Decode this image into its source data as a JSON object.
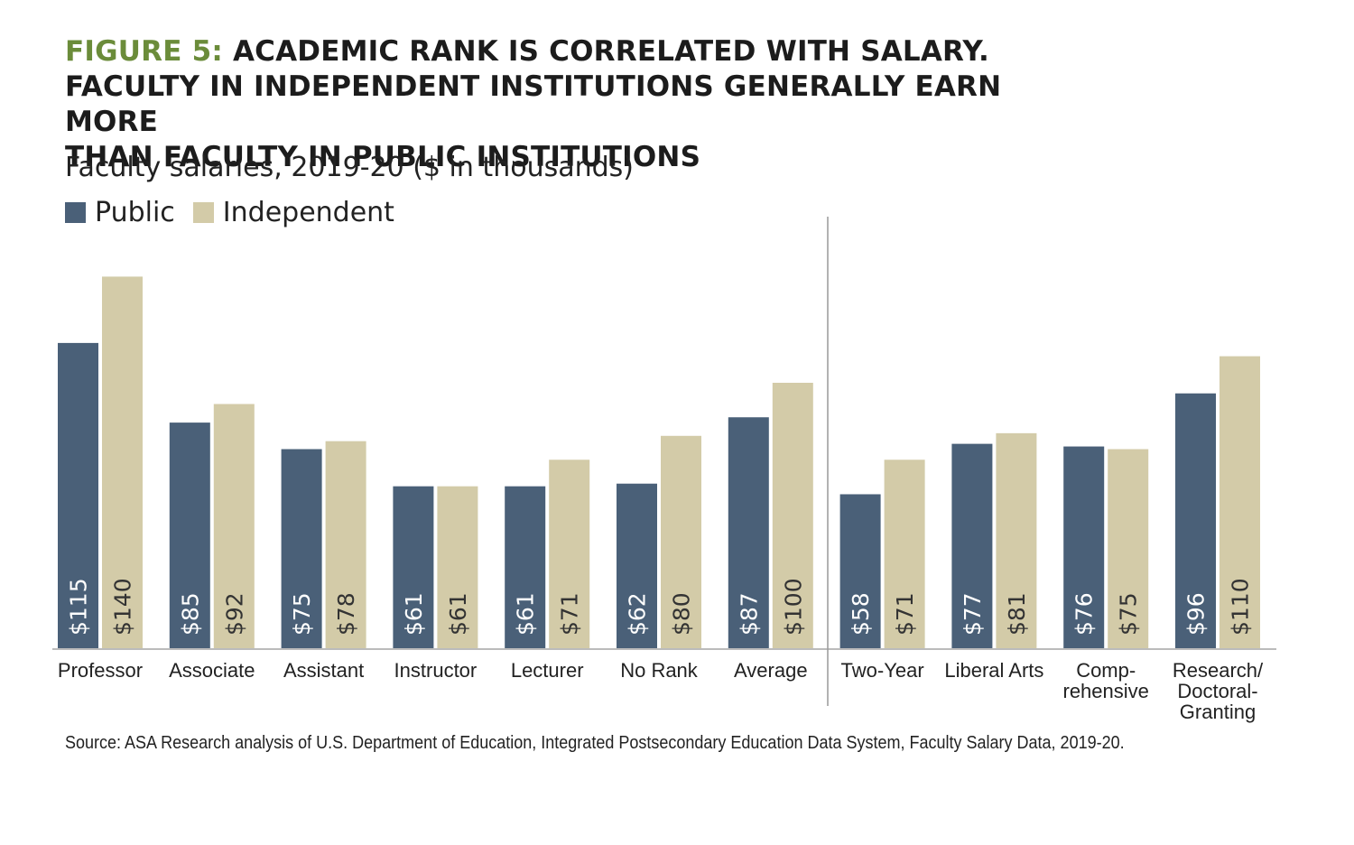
{
  "title": {
    "figure_label": "FIGURE 5:",
    "line1": "ACADEMIC RANK IS CORRELATED WITH SALARY.",
    "line2": "FACULTY IN INDEPENDENT INSTITUTIONS GENERALLY EARN MORE",
    "line3": "THAN FACULTY IN PUBLIC INSTITUTIONS"
  },
  "subtitle": "Faculty salaries, 2019-20 ($ in thousands)",
  "legend": {
    "public": "Public",
    "independent": "Independent"
  },
  "colors": {
    "public": "#4a6078",
    "independent": "#d3cba8",
    "figure_label": "#6b8c3a",
    "axis": "#bbbbbb",
    "divider": "#999999"
  },
  "source": "Source: ASA Research analysis of U.S. Department of Education, Integrated Postsecondary Education Data System, Faculty Salary Data, 2019-20.",
  "chart_data": {
    "type": "bar",
    "orientation": "vertical",
    "ylim": [
      0,
      150
    ],
    "grid": false,
    "legend_position": "top-left",
    "categories": [
      [
        "Professor"
      ],
      [
        "Associate"
      ],
      [
        "Assistant"
      ],
      [
        "Instructor"
      ],
      [
        "Lecturer"
      ],
      [
        "No Rank"
      ],
      [
        "Average"
      ],
      [
        "Two-Year"
      ],
      [
        "Liberal Arts"
      ],
      [
        "Comp-",
        "rehensive"
      ],
      [
        "Research/",
        "Doctoral-",
        "Granting"
      ]
    ],
    "divider_after_index": 6,
    "series": [
      {
        "name": "Public",
        "values": [
          115,
          85,
          75,
          61,
          61,
          62,
          87,
          58,
          77,
          76,
          96
        ],
        "labels": [
          "$115",
          "$85",
          "$75",
          "$61",
          "$61",
          "$62",
          "$87",
          "$58",
          "$77",
          "$76",
          "$96"
        ]
      },
      {
        "name": "Independent",
        "values": [
          140,
          92,
          78,
          61,
          71,
          80,
          100,
          71,
          81,
          75,
          110
        ],
        "labels": [
          "$140",
          "$92",
          "$78",
          "$61",
          "$71",
          "$80",
          "$100",
          "$71",
          "$81",
          "$75",
          "$110"
        ]
      }
    ]
  }
}
